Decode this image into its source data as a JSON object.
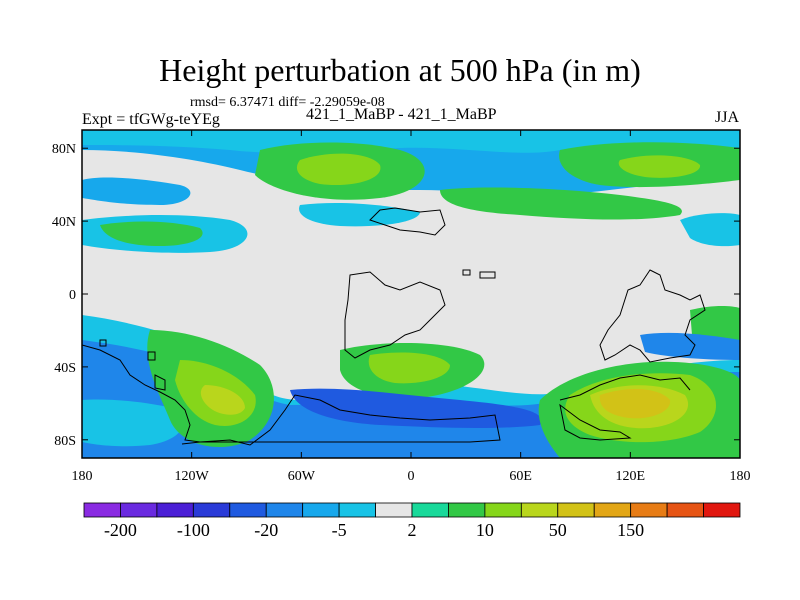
{
  "chart_data": {
    "type": "heatmap",
    "title": "Height perturbation at 500 hPa (in m)",
    "stats_line": "rmsd= 6.37471 diff= -2.29059e-08",
    "left_label": "Expt = tfGWg-teYEg",
    "center_label": "421_1_MaBP - 421_1_MaBP",
    "right_label": "JJA",
    "x_ticks": [
      "180",
      "120W",
      "60W",
      "0",
      "60E",
      "120E",
      "180"
    ],
    "x_range": [
      -180,
      180
    ],
    "y_ticks": [
      "80N",
      "40N",
      "0",
      "40S",
      "80S"
    ],
    "y_range": [
      -90,
      90
    ],
    "colorbar": {
      "colors": [
        "#8a2be2",
        "#6a2ae0",
        "#4b1fd6",
        "#2a3bd8",
        "#1f5ae0",
        "#1f86ea",
        "#17a8ec",
        "#18c3e6",
        "#e6e6e6",
        "#19d99a",
        "#32c846",
        "#86d61a",
        "#b9d61c",
        "#d2c217",
        "#e2a616",
        "#e77c15",
        "#e65414",
        "#e1170f"
      ],
      "labels": [
        "-200",
        "-100",
        "-20",
        "-5",
        "2",
        "10",
        "50",
        "150"
      ]
    },
    "regions": [
      {
        "name": "arctic-band-west",
        "lon": -120,
        "lat": 72,
        "level": "-5"
      },
      {
        "name": "arctic-high-center",
        "lon": -20,
        "lat": 74,
        "level": "10"
      },
      {
        "name": "arctic-high-east",
        "lon": 80,
        "lat": 72,
        "level": "10"
      },
      {
        "name": "midlat-north-lows",
        "lon": -90,
        "lat": 35,
        "level": "-5"
      },
      {
        "name": "south-atlantic-high",
        "lon": 10,
        "lat": -40,
        "level": "10"
      },
      {
        "name": "southern-ocean-low",
        "lon": -20,
        "lat": -65,
        "level": "-20"
      },
      {
        "name": "south-pacific-high",
        "lon": -100,
        "lat": -55,
        "level": "10"
      },
      {
        "name": "south-indian-high",
        "lon": 120,
        "lat": -62,
        "level": "50"
      }
    ]
  }
}
